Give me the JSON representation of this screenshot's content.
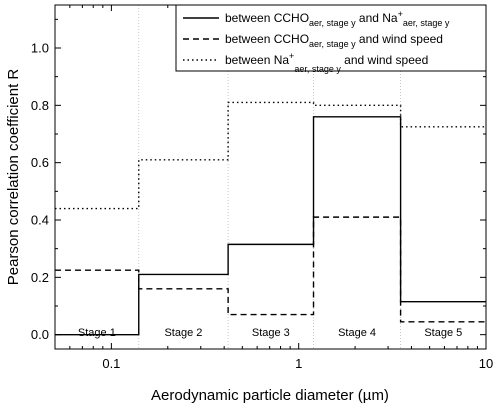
{
  "chart_data": {
    "type": "line",
    "step": true,
    "xscale": "log",
    "xlim": [
      0.05,
      10
    ],
    "ylim": [
      -0.05,
      1.15
    ],
    "xlabel": "Aerodynamic particle diameter (µm)",
    "ylabel": "Pearson correlation coefficient R",
    "x_ticks": [
      {
        "value": 0.1,
        "label": "0.1"
      },
      {
        "value": 1,
        "label": "1"
      },
      {
        "value": 10,
        "label": "10"
      }
    ],
    "y_ticks": [
      {
        "value": 0.0,
        "label": "0.0"
      },
      {
        "value": 0.2,
        "label": "0.2"
      },
      {
        "value": 0.4,
        "label": "0.4"
      },
      {
        "value": 0.6,
        "label": "0.6"
      },
      {
        "value": 0.8,
        "label": "0.8"
      },
      {
        "value": 1.0,
        "label": "1.0"
      }
    ],
    "stage_boundaries": [
      0.05,
      0.14,
      0.42,
      1.2,
      3.5,
      10
    ],
    "stage_labels": [
      "Stage 1",
      "Stage 2",
      "Stage 3",
      "Stage 4",
      "Stage 5"
    ],
    "series": [
      {
        "style": "solid",
        "legend": {
          "pre": "between CCHO",
          "sub1": "aer, stage y",
          "mid": " and Na",
          "sup": "+",
          "sub2": "aer, stage y",
          "post": ""
        },
        "values": [
          0.0,
          0.21,
          0.315,
          0.76,
          0.115
        ]
      },
      {
        "style": "dashed",
        "legend": {
          "pre": "between CCHO",
          "sub1": "aer, stage y",
          "mid": " and wind speed",
          "sup": "",
          "sub2": "",
          "post": ""
        },
        "values": [
          0.225,
          0.16,
          0.07,
          0.41,
          0.045
        ]
      },
      {
        "style": "dotted",
        "legend": {
          "pre": "between Na",
          "sup": "+",
          "sub1": "aer, stage y",
          "mid": " and wind speed",
          "sub2": "",
          "post": ""
        },
        "values": [
          0.44,
          0.61,
          0.81,
          0.8,
          0.725
        ]
      }
    ],
    "grid": false,
    "legend_position": "top-right"
  }
}
